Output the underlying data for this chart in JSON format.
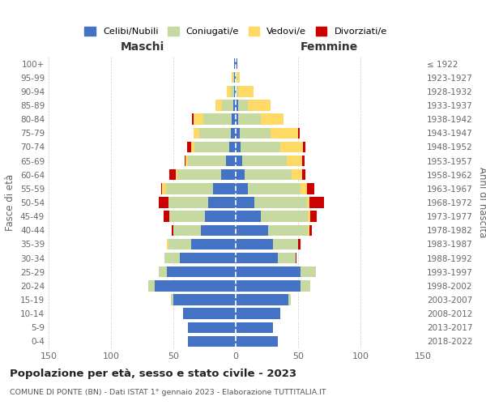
{
  "age_groups": [
    "0-4",
    "5-9",
    "10-14",
    "15-19",
    "20-24",
    "25-29",
    "30-34",
    "35-39",
    "40-44",
    "45-49",
    "50-54",
    "55-59",
    "60-64",
    "65-69",
    "70-74",
    "75-79",
    "80-84",
    "85-89",
    "90-94",
    "95-99",
    "100+"
  ],
  "birth_years": [
    "2018-2022",
    "2013-2017",
    "2008-2012",
    "2003-2007",
    "1998-2002",
    "1993-1997",
    "1988-1992",
    "1983-1987",
    "1978-1982",
    "1973-1977",
    "1968-1972",
    "1963-1967",
    "1958-1962",
    "1953-1957",
    "1948-1952",
    "1943-1947",
    "1938-1942",
    "1933-1937",
    "1928-1932",
    "1923-1927",
    "≤ 1922"
  ],
  "colors": {
    "celibi": "#4472c4",
    "coniugati": "#c5d9a0",
    "vedovi": "#ffd966",
    "divorziati": "#cc0000"
  },
  "maschi": {
    "celibi": [
      38,
      38,
      42,
      50,
      65,
      55,
      45,
      36,
      28,
      25,
      22,
      18,
      12,
      8,
      5,
      4,
      3,
      2,
      1,
      1,
      1
    ],
    "coniugati": [
      0,
      0,
      0,
      2,
      5,
      7,
      12,
      18,
      22,
      28,
      32,
      38,
      35,
      30,
      28,
      25,
      23,
      9,
      3,
      1,
      0
    ],
    "vedovi": [
      0,
      0,
      0,
      0,
      0,
      0,
      0,
      1,
      0,
      0,
      0,
      3,
      1,
      2,
      3,
      5,
      8,
      5,
      3,
      1,
      0
    ],
    "divorziati": [
      0,
      0,
      0,
      0,
      0,
      0,
      0,
      0,
      1,
      5,
      8,
      1,
      5,
      1,
      3,
      0,
      1,
      0,
      0,
      0,
      0
    ]
  },
  "femmine": {
    "celibi": [
      34,
      30,
      36,
      42,
      52,
      52,
      34,
      30,
      26,
      20,
      15,
      10,
      7,
      5,
      4,
      3,
      2,
      2,
      0,
      0,
      1
    ],
    "coniugati": [
      0,
      0,
      0,
      2,
      8,
      12,
      14,
      20,
      32,
      38,
      42,
      42,
      38,
      36,
      32,
      25,
      18,
      8,
      2,
      1,
      0
    ],
    "vedovi": [
      0,
      0,
      0,
      0,
      0,
      0,
      0,
      0,
      1,
      2,
      2,
      5,
      8,
      12,
      18,
      22,
      18,
      18,
      12,
      2,
      0
    ],
    "divorziati": [
      0,
      0,
      0,
      0,
      0,
      0,
      1,
      2,
      2,
      5,
      12,
      6,
      3,
      2,
      2,
      1,
      0,
      0,
      0,
      0,
      0
    ]
  },
  "xlim": 150,
  "title": "Popolazione per età, sesso e stato civile - 2023",
  "subtitle": "COMUNE DI PONTE (BN) - Dati ISTAT 1° gennaio 2023 - Elaborazione TUTTITALIA.IT",
  "xlabel_left": "Maschi",
  "xlabel_right": "Femmine",
  "ylabel_left": "Fasce di età",
  "ylabel_right": "Anni di nascita",
  "legend_labels": [
    "Celibi/Nubili",
    "Coniugati/e",
    "Vedovi/e",
    "Divorziati/e"
  ]
}
